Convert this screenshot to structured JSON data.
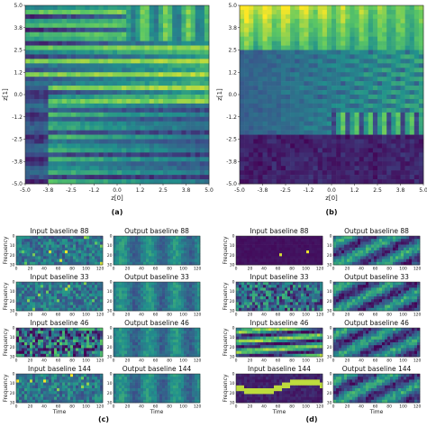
{
  "colormap": [
    "#440154",
    "#3b528b",
    "#21918c",
    "#5ec962",
    "#fde725"
  ],
  "panel_labels": [
    "(a)",
    "(b)",
    "(c)",
    "(d)"
  ],
  "chart_data": [
    {
      "type": "heatmap",
      "panel": "(a)",
      "xlabel": "z[0]",
      "ylabel": "z[1]",
      "xlim": [
        -5.0,
        5.0
      ],
      "ylim": [
        -5.0,
        5.0
      ],
      "xticks": [
        "-5.0",
        "-3.8",
        "-2.5",
        "-1.2",
        "0.0",
        "1.2",
        "2.5",
        "3.8",
        "5.0"
      ],
      "yticks": [
        "5.0",
        "3.8",
        "2.5",
        "1.2",
        "0.0",
        "-1.2",
        "-2.5",
        "-3.8",
        "-5.0"
      ]
    },
    {
      "type": "heatmap",
      "panel": "(b)",
      "xlabel": "z[0]",
      "ylabel": "z[1]",
      "xlim": [
        -5.0,
        5.0
      ],
      "ylim": [
        -5.0,
        5.0
      ],
      "xticks": [
        "-5.0",
        "-3.8",
        "-2.5",
        "-1.2",
        "0.0",
        "1.2",
        "2.5",
        "3.8",
        "5.0"
      ],
      "yticks": [
        "5.0",
        "3.8",
        "2.5",
        "1.2",
        "0.0",
        "-1.2",
        "-2.5",
        "-3.8",
        "-5.0"
      ]
    },
    {
      "type": "heatmap",
      "panel": "(c)",
      "xlabel": "Time",
      "ylabel": "Frequency",
      "xticks": [
        "0",
        "20",
        "40",
        "60",
        "80",
        "100",
        "120"
      ],
      "yticks": [
        "0",
        "10",
        "20",
        "30"
      ],
      "subplots": [
        {
          "title": "Input baseline 88"
        },
        {
          "title": "Output baseline 88"
        },
        {
          "title": "Input baseline 33"
        },
        {
          "title": "Output baseline 33"
        },
        {
          "title": "Input baseline 46"
        },
        {
          "title": "Output baseline 46"
        },
        {
          "title": "Input baseline 144"
        },
        {
          "title": "Output baseline 144"
        }
      ]
    },
    {
      "type": "heatmap",
      "panel": "(d)",
      "xlabel": "Time",
      "ylabel": "Frequency",
      "xticks": [
        "0",
        "20",
        "40",
        "60",
        "80",
        "100",
        "120"
      ],
      "yticks": [
        "0",
        "10",
        "20",
        "30"
      ],
      "subplots": [
        {
          "title": "Input baseline 88"
        },
        {
          "title": "Output baseline 88"
        },
        {
          "title": "Input baseline 33"
        },
        {
          "title": "Output baseline 33"
        },
        {
          "title": "Input baseline 46"
        },
        {
          "title": "Output baseline 46"
        },
        {
          "title": "Input baseline 144"
        },
        {
          "title": "Output baseline 144"
        }
      ]
    }
  ]
}
